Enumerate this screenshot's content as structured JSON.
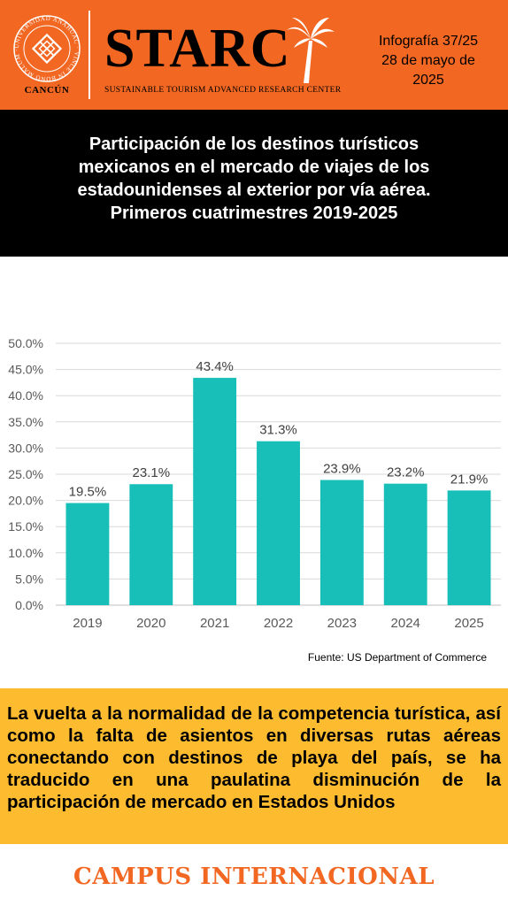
{
  "header": {
    "university_ring_text": "UNIVERSIDAD ANÁHUAC · VINCE IN BONO MALUM ·",
    "university_caption": "CANCÚN",
    "center_name": "STARC",
    "center_subtitle": "SUSTAINABLE TOURISM ADVANCED RESEARCH CENTER",
    "info_number": "Infografía 37/25",
    "info_date_line1": "28 de mayo de",
    "info_date_line2": "2025",
    "brand_orange": "#f26722"
  },
  "title": {
    "line1": "Participación de los destinos turísticos",
    "line2": "mexicanos en el mercado de viajes de los",
    "line3": "estadounidenses al exterior por vía aérea.",
    "line4": "Primeros cuatrimestres 2019-2025"
  },
  "chart_data": {
    "type": "bar",
    "categories": [
      "2019",
      "2020",
      "2021",
      "2022",
      "2023",
      "2024",
      "2025"
    ],
    "values": [
      19.5,
      23.1,
      43.4,
      31.3,
      23.9,
      23.2,
      21.9
    ],
    "data_labels": [
      "19.5%",
      "23.1%",
      "43.4%",
      "31.3%",
      "23.9%",
      "23.2%",
      "21.9%"
    ],
    "yticks": [
      0,
      5,
      10,
      15,
      20,
      25,
      30,
      35,
      40,
      45,
      50
    ],
    "ytick_labels": [
      "0.0%",
      "5.0%",
      "10.0%",
      "15.0%",
      "20.0%",
      "25.0%",
      "30.0%",
      "35.0%",
      "40.0%",
      "45.0%",
      "50.0%"
    ],
    "ylim": [
      0,
      50
    ],
    "grid": true,
    "legend": "none",
    "bar_color": "#17bfb8"
  },
  "source": "Fuente: US Department of Commerce",
  "message": "La vuelta a la normalidad de la competencia turística, así como la falta de asientos en diversas rutas aéreas conectando con destinos de playa del país, se ha traducido en una paulatina disminución de la participación de mercado en Estados Unidos",
  "footer": {
    "campus_label": "CAMPUS INTERNACIONAL"
  },
  "colors": {
    "header_bg": "#f26722",
    "title_bg": "#000000",
    "message_bg": "#fdbb30"
  }
}
